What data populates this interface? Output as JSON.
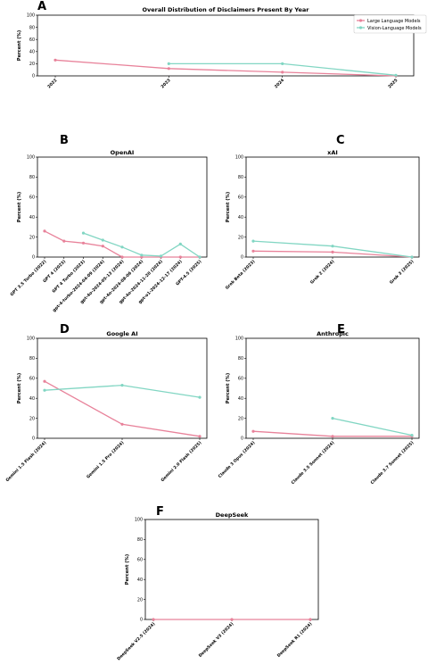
{
  "colors": {
    "llm": "#e8829a",
    "vlm": "#82d6c3"
  },
  "legend": {
    "llm": "Large Language Models",
    "vlm": "Vision-Language Models"
  },
  "chart_data": [
    {
      "letter": "A",
      "type": "line",
      "title": "Overall Distribution of Disclaimers Present By Year",
      "ylabel": "Percent (%)",
      "ylim": [
        0,
        100
      ],
      "yticks": [
        0,
        20,
        40,
        60,
        80,
        100
      ],
      "categories": [
        "2022",
        "2023",
        "2024",
        "2025"
      ],
      "legend_position": "top-right",
      "series": [
        {
          "name": "Large Language Models",
          "key": "llm",
          "values": [
            26,
            12,
            6,
            0
          ]
        },
        {
          "name": "Vision-Language Models",
          "key": "vlm",
          "values": [
            null,
            20,
            20,
            1
          ]
        }
      ]
    },
    {
      "letter": "B",
      "type": "line",
      "title": "OpenAI",
      "ylabel": "Percent (%)",
      "ylim": [
        0,
        100
      ],
      "yticks": [
        0,
        20,
        40,
        60,
        80,
        100
      ],
      "categories": [
        "GPT 3.5 Turbo (2022)",
        "GPT 4 (2023)",
        "GPT 4 Turbo (2023)",
        "gpt-4-turbo-2024-04-09 (2024)",
        "gpt-4o-2024-05-13 (2024)",
        "gpt-4o-2024-08-06 (2024)",
        "gpt-4o-2024-11-20 (2024)",
        "gpt-o1-2024-12-17 (2024)",
        "GPT-4.5 (2025)"
      ],
      "series": [
        {
          "name": "Large Language Models",
          "key": "llm",
          "values": [
            26,
            16,
            14,
            11,
            0,
            0,
            0,
            0,
            0
          ]
        },
        {
          "name": "Vision-Language Models",
          "key": "vlm",
          "values": [
            null,
            null,
            24,
            17,
            10,
            2,
            1,
            13,
            0
          ]
        }
      ]
    },
    {
      "letter": "C",
      "type": "line",
      "title": "xAI",
      "ylabel": "Percent (%)",
      "ylim": [
        0,
        100
      ],
      "yticks": [
        0,
        20,
        40,
        60,
        80,
        100
      ],
      "categories": [
        "Grok Beta (2023)",
        "Grok 2 (2024)",
        "Grok 3 (2025)"
      ],
      "series": [
        {
          "name": "Large Language Models",
          "key": "llm",
          "values": [
            6,
            5,
            0
          ]
        },
        {
          "name": "Vision-Language Models",
          "key": "vlm",
          "values": [
            16,
            11,
            0
          ]
        }
      ]
    },
    {
      "letter": "D",
      "type": "line",
      "title": "Google AI",
      "ylabel": "Percent (%)",
      "ylim": [
        0,
        100
      ],
      "yticks": [
        0,
        20,
        40,
        60,
        80,
        100
      ],
      "categories": [
        "Gemini 1.5 Flash (2024)",
        "Gemini 1.5 Pro (2024)",
        "Gemini 2.0 Flash (2025)"
      ],
      "series": [
        {
          "name": "Large Language Models",
          "key": "llm",
          "values": [
            57,
            14,
            2
          ]
        },
        {
          "name": "Vision-Language Models",
          "key": "vlm",
          "values": [
            48,
            53,
            41
          ]
        }
      ]
    },
    {
      "letter": "E",
      "type": "line",
      "title": "Anthropic",
      "ylabel": "Percent (%)",
      "ylim": [
        0,
        100
      ],
      "yticks": [
        0,
        20,
        40,
        60,
        80,
        100
      ],
      "categories": [
        "Claude 3 Opus (2024)",
        "Claude 3.5 Sonnet (2024)",
        "Claude 3.7 Sonnet (2025)"
      ],
      "series": [
        {
          "name": "Large Language Models",
          "key": "llm",
          "values": [
            7,
            2,
            2
          ]
        },
        {
          "name": "Vision-Language Models",
          "key": "vlm",
          "values": [
            null,
            20,
            3
          ]
        }
      ]
    },
    {
      "letter": "F",
      "type": "line",
      "title": "DeepSeek",
      "ylabel": "Percent (%)",
      "ylim": [
        0,
        100
      ],
      "yticks": [
        0,
        20,
        40,
        60,
        80,
        100
      ],
      "categories": [
        "DeepSeek V2.5 (2024)",
        "DeepSeek V3 (2024)",
        "DeepSeek R1 (2024)"
      ],
      "series": [
        {
          "name": "Large Language Models",
          "key": "llm",
          "values": [
            0,
            0,
            0
          ]
        }
      ]
    }
  ]
}
